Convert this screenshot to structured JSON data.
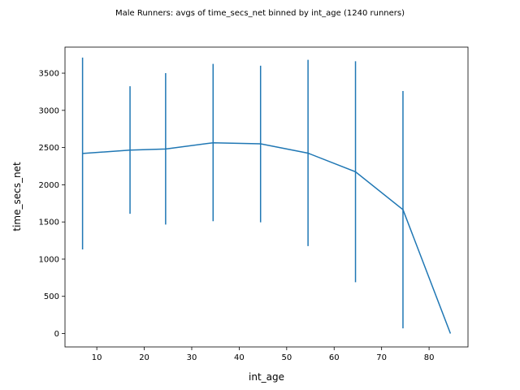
{
  "chart_data": {
    "type": "line",
    "title": "Male Runners: avgs of time_secs_net binned by int_age (1240 runners)",
    "xlabel": "int_age",
    "ylabel": "time_secs_net",
    "xlim": [
      3.3,
      88.2
    ],
    "ylim": [
      -180,
      3850
    ],
    "x_ticks": [
      10,
      20,
      30,
      40,
      50,
      60,
      70,
      80
    ],
    "y_ticks": [
      0,
      500,
      1000,
      1500,
      2000,
      2500,
      3000,
      3500
    ],
    "grid": false,
    "color": "#1f77b4",
    "series": [
      {
        "x": [
          7.0,
          17.0,
          24.5,
          34.5,
          44.5,
          54.5,
          64.5,
          74.5,
          84.5
        ],
        "y": [
          2420,
          2465,
          2480,
          2565,
          2550,
          2425,
          2175,
          1665,
          0
        ],
        "err_low": [
          1130,
          1610,
          1465,
          1510,
          1495,
          1175,
          690,
          70,
          0
        ],
        "err_high": [
          3710,
          3325,
          3500,
          3625,
          3600,
          3680,
          3660,
          3260,
          0
        ]
      }
    ]
  }
}
